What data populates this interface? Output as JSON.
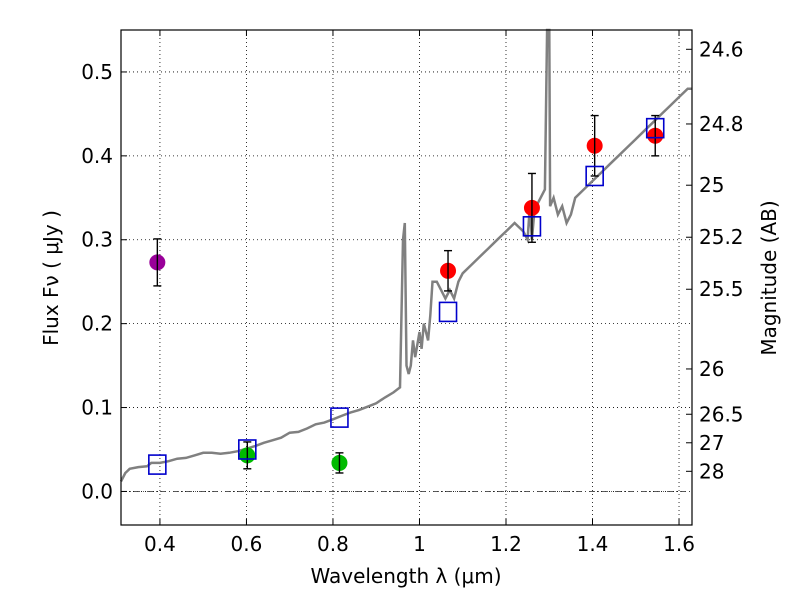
{
  "chart_data": {
    "type": "scatter",
    "title": "",
    "xlabel": "Wavelength  λ (μm)",
    "ylabel": "Flux  Fν  ( μJy )",
    "y2label": "Magnitude (AB)",
    "xlim": [
      0.31,
      1.63
    ],
    "ylim": [
      -0.04,
      0.55
    ],
    "grid": true,
    "x_ticks": [
      {
        "value": 0.4,
        "label": "0.4"
      },
      {
        "value": 0.6,
        "label": "0.6"
      },
      {
        "value": 0.8,
        "label": "0.8"
      },
      {
        "value": 1.0,
        "label": "1"
      },
      {
        "value": 1.2,
        "label": "1.2"
      },
      {
        "value": 1.4,
        "label": "1.4"
      },
      {
        "value": 1.6,
        "label": "1.6"
      }
    ],
    "y_ticks": [
      {
        "value": 0.0,
        "label": "0.0"
      },
      {
        "value": 0.1,
        "label": "0.1"
      },
      {
        "value": 0.2,
        "label": "0.2"
      },
      {
        "value": 0.3,
        "label": "0.3"
      },
      {
        "value": 0.4,
        "label": "0.4"
      },
      {
        "value": 0.5,
        "label": "0.5"
      }
    ],
    "mag_ticks": [
      {
        "flux": 0.527,
        "label": "24.6"
      },
      {
        "flux": 0.438,
        "label": "24.8"
      },
      {
        "flux": 0.365,
        "label": "25"
      },
      {
        "flux": 0.303,
        "label": "25.2"
      },
      {
        "flux": 0.241,
        "label": "25.5"
      },
      {
        "flux": 0.146,
        "label": "26"
      },
      {
        "flux": 0.092,
        "label": "26.5"
      },
      {
        "flux": 0.058,
        "label": "27"
      },
      {
        "flux": 0.024,
        "label": "28"
      }
    ],
    "colors": {
      "model": "#808080",
      "violet": "#990099",
      "green": "#00bb00",
      "red": "#ff0000",
      "square": "#0000cc",
      "errorbar": "#000000"
    },
    "model_spectrum": [
      [
        0.31,
        0.012
      ],
      [
        0.32,
        0.022
      ],
      [
        0.33,
        0.027
      ],
      [
        0.35,
        0.029
      ],
      [
        0.37,
        0.03
      ],
      [
        0.38,
        0.034
      ],
      [
        0.4,
        0.034
      ],
      [
        0.42,
        0.036
      ],
      [
        0.44,
        0.039
      ],
      [
        0.46,
        0.04
      ],
      [
        0.48,
        0.043
      ],
      [
        0.5,
        0.046
      ],
      [
        0.52,
        0.046
      ],
      [
        0.54,
        0.045
      ],
      [
        0.56,
        0.046
      ],
      [
        0.58,
        0.048
      ],
      [
        0.6,
        0.051
      ],
      [
        0.62,
        0.054
      ],
      [
        0.64,
        0.058
      ],
      [
        0.66,
        0.061
      ],
      [
        0.68,
        0.064
      ],
      [
        0.7,
        0.07
      ],
      [
        0.72,
        0.071
      ],
      [
        0.74,
        0.075
      ],
      [
        0.76,
        0.08
      ],
      [
        0.78,
        0.082
      ],
      [
        0.8,
        0.086
      ],
      [
        0.82,
        0.09
      ],
      [
        0.84,
        0.094
      ],
      [
        0.86,
        0.097
      ],
      [
        0.88,
        0.101
      ],
      [
        0.9,
        0.105
      ],
      [
        0.92,
        0.112
      ],
      [
        0.94,
        0.118
      ],
      [
        0.955,
        0.124
      ],
      [
        0.962,
        0.3
      ],
      [
        0.966,
        0.32
      ],
      [
        0.97,
        0.15
      ],
      [
        0.975,
        0.14
      ],
      [
        0.98,
        0.15
      ],
      [
        0.985,
        0.18
      ],
      [
        0.99,
        0.16
      ],
      [
        1.0,
        0.19
      ],
      [
        1.005,
        0.17
      ],
      [
        1.01,
        0.2
      ],
      [
        1.015,
        0.19
      ],
      [
        1.02,
        0.18
      ],
      [
        1.025,
        0.21
      ],
      [
        1.03,
        0.25
      ],
      [
        1.04,
        0.25
      ],
      [
        1.05,
        0.24
      ],
      [
        1.06,
        0.23
      ],
      [
        1.07,
        0.24
      ],
      [
        1.08,
        0.23
      ],
      [
        1.09,
        0.25
      ],
      [
        1.1,
        0.26
      ],
      [
        1.12,
        0.27
      ],
      [
        1.14,
        0.28
      ],
      [
        1.16,
        0.29
      ],
      [
        1.18,
        0.3
      ],
      [
        1.2,
        0.31
      ],
      [
        1.22,
        0.32
      ],
      [
        1.24,
        0.31
      ],
      [
        1.25,
        0.3
      ],
      [
        1.255,
        0.34
      ],
      [
        1.26,
        0.3
      ],
      [
        1.265,
        0.33
      ],
      [
        1.27,
        0.34
      ],
      [
        1.28,
        0.35
      ],
      [
        1.29,
        0.36
      ],
      [
        1.295,
        0.56
      ],
      [
        1.3,
        0.56
      ],
      [
        1.302,
        0.34
      ],
      [
        1.31,
        0.35
      ],
      [
        1.32,
        0.33
      ],
      [
        1.33,
        0.34
      ],
      [
        1.34,
        0.32
      ],
      [
        1.35,
        0.33
      ],
      [
        1.36,
        0.35
      ],
      [
        1.38,
        0.36
      ],
      [
        1.4,
        0.37
      ],
      [
        1.42,
        0.38
      ],
      [
        1.44,
        0.39
      ],
      [
        1.46,
        0.4
      ],
      [
        1.48,
        0.41
      ],
      [
        1.5,
        0.42
      ],
      [
        1.52,
        0.43
      ],
      [
        1.54,
        0.44
      ],
      [
        1.56,
        0.45
      ],
      [
        1.58,
        0.46
      ],
      [
        1.6,
        0.47
      ],
      [
        1.62,
        0.48
      ],
      [
        1.63,
        0.48
      ]
    ],
    "series": [
      {
        "name": "violet point",
        "marker": "circle",
        "color": "#990099",
        "points": [
          {
            "x": 0.394,
            "y": 0.273,
            "err": 0.028
          }
        ]
      },
      {
        "name": "green points",
        "marker": "circle",
        "color": "#00bb00",
        "points": [
          {
            "x": 0.602,
            "y": 0.043,
            "err": 0.016
          },
          {
            "x": 0.815,
            "y": 0.034,
            "err": 0.012
          }
        ]
      },
      {
        "name": "red points",
        "marker": "circle",
        "color": "#ff0000",
        "points": [
          {
            "x": 1.066,
            "y": 0.263,
            "err": 0.024
          },
          {
            "x": 1.26,
            "y": 0.338,
            "err": 0.041
          },
          {
            "x": 1.405,
            "y": 0.412,
            "err": 0.036
          },
          {
            "x": 1.545,
            "y": 0.424,
            "err": 0.024
          }
        ]
      },
      {
        "name": "model photometry",
        "marker": "square",
        "color": "#0000cc",
        "points": [
          {
            "x": 0.394,
            "y": 0.032
          },
          {
            "x": 0.602,
            "y": 0.05
          },
          {
            "x": 0.815,
            "y": 0.088
          },
          {
            "x": 1.066,
            "y": 0.214
          },
          {
            "x": 1.26,
            "y": 0.316
          },
          {
            "x": 1.405,
            "y": 0.376
          },
          {
            "x": 1.545,
            "y": 0.433
          }
        ]
      }
    ]
  }
}
